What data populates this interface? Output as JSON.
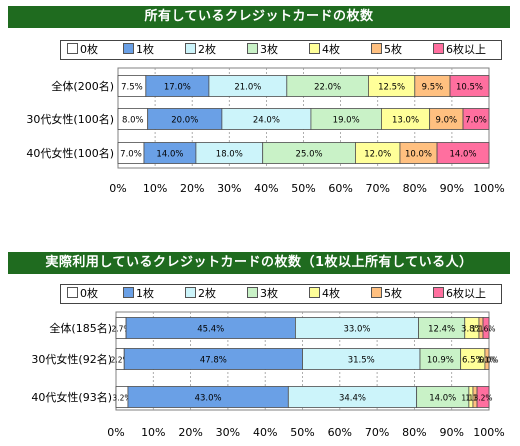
{
  "chart_data": [
    {
      "type": "bar",
      "stacked": "100%",
      "orientation": "horizontal",
      "title": "所有しているクレジットカードの枚数",
      "legend": [
        "0枚",
        "1枚",
        "2枚",
        "3枚",
        "4枚",
        "5枚",
        "6枚以上"
      ],
      "colors": [
        "#ffffff",
        "#6aa0e6",
        "#ccf4fa",
        "#c9f2c7",
        "#ffff99",
        "#ffc080",
        "#ff6f9f"
      ],
      "categories": [
        "全体(200名)",
        "30代女性(100名)",
        "40代女性(100名)"
      ],
      "series": [
        {
          "name": "0枚",
          "values": [
            7.5,
            8.0,
            7.0
          ]
        },
        {
          "name": "1枚",
          "values": [
            17.0,
            20.0,
            14.0
          ]
        },
        {
          "name": "2枚",
          "values": [
            21.0,
            24.0,
            18.0
          ]
        },
        {
          "name": "3枚",
          "values": [
            22.0,
            19.0,
            25.0
          ]
        },
        {
          "name": "4枚",
          "values": [
            12.5,
            13.0,
            12.0
          ]
        },
        {
          "name": "5枚",
          "values": [
            9.5,
            9.0,
            10.0
          ]
        },
        {
          "name": "6枚以上",
          "values": [
            10.5,
            7.0,
            14.0
          ]
        }
      ],
      "labels": [
        [
          "7.5%",
          "17.0%",
          "21.0%",
          "22.0%",
          "12.5%",
          "9.5%",
          "10.5%"
        ],
        [
          "8.0%",
          "20.0%",
          "24.0%",
          "19.0%",
          "13.0%",
          "9.0%",
          "7.0%"
        ],
        [
          "7.0%",
          "14.0%",
          "18.0%",
          "25.0%",
          "12.0%",
          "10.0%",
          "14.0%"
        ]
      ],
      "xlim": [
        0,
        100
      ],
      "xticks": [
        "0%",
        "10%",
        "20%",
        "30%",
        "40%",
        "50%",
        "60%",
        "70%",
        "80%",
        "90%",
        "100%"
      ]
    },
    {
      "type": "bar",
      "stacked": "100%",
      "orientation": "horizontal",
      "title": "実際利用しているクレジットカードの枚数（1枚以上所有している人）",
      "legend": [
        "0枚",
        "1枚",
        "2枚",
        "3枚",
        "4枚",
        "5枚",
        "6枚以上"
      ],
      "colors": [
        "#ffffff",
        "#6aa0e6",
        "#ccf4fa",
        "#c9f2c7",
        "#ffff99",
        "#ffc080",
        "#ff6f9f"
      ],
      "categories": [
        "全体(185名)",
        "30代女性(92名)",
        "40代女性(93名)"
      ],
      "series": [
        {
          "name": "0枚",
          "values": [
            2.7,
            2.2,
            3.2
          ]
        },
        {
          "name": "1枚",
          "values": [
            45.4,
            47.8,
            43.0
          ]
        },
        {
          "name": "2枚",
          "values": [
            33.0,
            31.5,
            34.4
          ]
        },
        {
          "name": "3枚",
          "values": [
            12.4,
            10.9,
            14.0
          ]
        },
        {
          "name": "4枚",
          "values": [
            3.8,
            6.5,
            1.1
          ]
        },
        {
          "name": "5枚",
          "values": [
            1.1,
            1.1,
            1.1
          ]
        },
        {
          "name": "6枚以上",
          "values": [
            1.6,
            0.0,
            3.2
          ]
        }
      ],
      "labels": [
        [
          "2.7%",
          "45.4%",
          "33.0%",
          "12.4%",
          "3.8%",
          "1.1%",
          "1.6%"
        ],
        [
          "2.2%",
          "47.8%",
          "31.5%",
          "10.9%",
          "6.5%",
          "1.1%",
          "0.0%"
        ],
        [
          "3.2%",
          "43.0%",
          "34.4%",
          "14.0%",
          "1.1%",
          "1.1%",
          "3.2%"
        ]
      ],
      "xlim": [
        0,
        100
      ],
      "xticks": [
        "0%",
        "10%",
        "20%",
        "30%",
        "40%",
        "50%",
        "60%",
        "70%",
        "80%",
        "90%",
        "100%"
      ]
    }
  ]
}
